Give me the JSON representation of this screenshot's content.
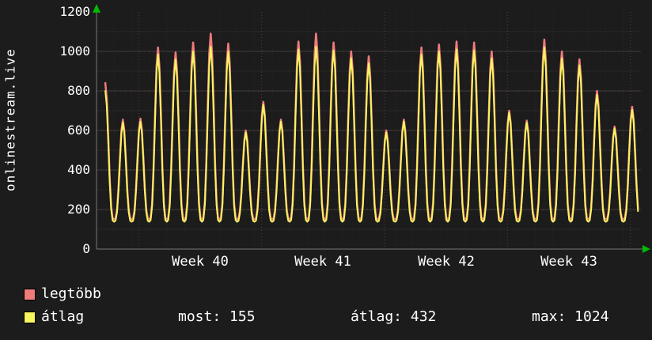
{
  "title": "onlinestream.live",
  "legend": {
    "items": [
      {
        "label": "legtöbb",
        "color": "#ef7b7b"
      },
      {
        "label": "átlag",
        "color": "#f6f65f"
      }
    ],
    "stats": [
      {
        "text": "most: 155"
      },
      {
        "text": "átlag: 432"
      },
      {
        "text": "max: 1024"
      }
    ]
  },
  "chart_data": {
    "type": "line",
    "title": "onlinestream.live",
    "ylabel": "onlinestream.live",
    "xlabel": "",
    "ylim": [
      0,
      1200
    ],
    "ytick_labels": [
      "0",
      "200",
      "400",
      "600",
      "800",
      "1000",
      "1200"
    ],
    "x_labels": [
      "Week 40",
      "Week 41",
      "Week 42",
      "Week 43"
    ],
    "grid": true,
    "legend_position": "bottom-left",
    "background": "#1c1c1c",
    "arrow_color": "#00bb00",
    "stats": {
      "most": 155,
      "atlag": 432,
      "max": 1024
    },
    "days": 31,
    "week_offset": 2.4,
    "start_t": 0.45,
    "end_t_offset": 0.1,
    "peak_sharpness": 1.7,
    "series": [
      {
        "name": "legtöbb",
        "color": "#ef7b7b",
        "width": 2.5,
        "trough": 150,
        "peaks": [
          840,
          655,
          660,
          1020,
          995,
          1045,
          1090,
          1040,
          600,
          745,
          655,
          1050,
          1090,
          1045,
          1000,
          975,
          600,
          655,
          1020,
          1035,
          1050,
          1045,
          1000,
          700,
          650,
          1060,
          1000,
          960,
          800,
          620,
          720
        ]
      },
      {
        "name": "átlag",
        "color": "#f6f65f",
        "width": 2,
        "trough": 138,
        "peaks": [
          800,
          640,
          645,
          985,
          960,
          1000,
          1024,
          1000,
          590,
          730,
          645,
          1010,
          1024,
          1005,
          965,
          940,
          590,
          645,
          985,
          1000,
          1010,
          1005,
          965,
          690,
          640,
          1020,
          965,
          930,
          780,
          610,
          705
        ]
      }
    ]
  }
}
